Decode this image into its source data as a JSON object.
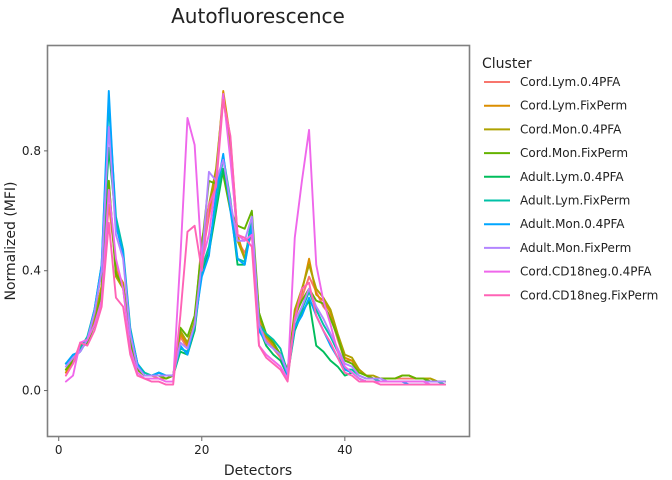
{
  "chart_data": {
    "type": "line",
    "title": "Autofluorescence",
    "xlabel": "Detectors",
    "ylabel": "Normalized (MFI)",
    "xlim": [
      -1.5,
      57.5
    ],
    "ylim": [
      -0.155,
      1.15
    ],
    "xticks": [
      0,
      20,
      40
    ],
    "yticks": [
      0.0,
      0.4,
      0.8
    ],
    "ytick_labels": [
      "0.0",
      "0.4",
      "0.8"
    ],
    "grid": false,
    "legend_title": "Cluster",
    "legend_position": "right",
    "x": [
      1,
      2,
      3,
      4,
      5,
      6,
      7,
      8,
      9,
      10,
      11,
      12,
      13,
      14,
      15,
      16,
      17,
      18,
      19,
      20,
      21,
      22,
      23,
      24,
      25,
      26,
      27,
      28,
      29,
      30,
      31,
      32,
      33,
      34,
      35,
      36,
      37,
      38,
      39,
      40,
      41,
      42,
      43,
      44,
      45,
      46,
      47,
      48,
      49,
      50,
      51,
      52,
      53,
      54
    ],
    "series": [
      {
        "name": "Cord.Lym.0.4PFA",
        "color": "#F8766D",
        "values": [
          0.06,
          0.09,
          0.14,
          0.16,
          0.22,
          0.33,
          0.62,
          0.42,
          0.35,
          0.16,
          0.07,
          0.05,
          0.05,
          0.04,
          0.04,
          0.05,
          0.18,
          0.14,
          0.2,
          0.44,
          0.58,
          0.7,
          0.98,
          0.8,
          0.5,
          0.46,
          0.52,
          0.24,
          0.17,
          0.14,
          0.11,
          0.06,
          0.24,
          0.31,
          0.38,
          0.33,
          0.28,
          0.25,
          0.17,
          0.1,
          0.1,
          0.07,
          0.05,
          0.04,
          0.04,
          0.04,
          0.04,
          0.04,
          0.04,
          0.04,
          0.04,
          0.03,
          0.03,
          0.03
        ]
      },
      {
        "name": "Cord.Lym.FixPerm",
        "color": "#DB8E00",
        "values": [
          0.06,
          0.1,
          0.15,
          0.17,
          0.24,
          0.35,
          0.68,
          0.4,
          0.36,
          0.17,
          0.07,
          0.05,
          0.05,
          0.05,
          0.04,
          0.05,
          0.19,
          0.15,
          0.21,
          0.48,
          0.6,
          0.72,
          1.0,
          0.84,
          0.52,
          0.44,
          0.54,
          0.25,
          0.18,
          0.15,
          0.12,
          0.06,
          0.26,
          0.33,
          0.44,
          0.32,
          0.3,
          0.26,
          0.18,
          0.11,
          0.1,
          0.07,
          0.05,
          0.04,
          0.04,
          0.04,
          0.04,
          0.05,
          0.05,
          0.04,
          0.04,
          0.04,
          0.03,
          0.03
        ]
      },
      {
        "name": "Cord.Mon.0.4PFA",
        "color": "#AEA200",
        "values": [
          0.07,
          0.1,
          0.14,
          0.17,
          0.23,
          0.34,
          0.7,
          0.38,
          0.34,
          0.16,
          0.07,
          0.05,
          0.05,
          0.05,
          0.04,
          0.05,
          0.2,
          0.16,
          0.23,
          0.5,
          0.62,
          0.74,
          0.98,
          0.82,
          0.5,
          0.44,
          0.56,
          0.26,
          0.18,
          0.16,
          0.12,
          0.07,
          0.27,
          0.34,
          0.42,
          0.34,
          0.31,
          0.27,
          0.19,
          0.12,
          0.11,
          0.07,
          0.05,
          0.05,
          0.04,
          0.04,
          0.04,
          0.05,
          0.05,
          0.04,
          0.04,
          0.04,
          0.03,
          0.03
        ]
      },
      {
        "name": "Cord.Mon.FixPerm",
        "color": "#64B200",
        "values": [
          0.07,
          0.1,
          0.14,
          0.16,
          0.22,
          0.33,
          0.7,
          0.39,
          0.35,
          0.16,
          0.07,
          0.05,
          0.05,
          0.05,
          0.04,
          0.05,
          0.21,
          0.18,
          0.25,
          0.48,
          0.7,
          0.69,
          0.72,
          0.6,
          0.55,
          0.54,
          0.6,
          0.26,
          0.19,
          0.16,
          0.12,
          0.07,
          0.25,
          0.3,
          0.34,
          0.3,
          0.29,
          0.24,
          0.18,
          0.1,
          0.09,
          0.06,
          0.05,
          0.04,
          0.04,
          0.04,
          0.04,
          0.05,
          0.05,
          0.04,
          0.04,
          0.03,
          0.03,
          0.03
        ]
      },
      {
        "name": "Adult.Lym.0.4PFA",
        "color": "#00BD5C",
        "values": [
          0.09,
          0.11,
          0.13,
          0.17,
          0.26,
          0.4,
          0.81,
          0.56,
          0.45,
          0.2,
          0.09,
          0.05,
          0.05,
          0.06,
          0.05,
          0.05,
          0.13,
          0.12,
          0.2,
          0.4,
          0.46,
          0.6,
          0.74,
          0.62,
          0.42,
          0.42,
          0.57,
          0.21,
          0.15,
          0.12,
          0.1,
          0.05,
          0.2,
          0.26,
          0.3,
          0.15,
          0.13,
          0.1,
          0.08,
          0.05,
          0.06,
          0.04,
          0.03,
          0.03,
          0.03,
          0.03,
          0.03,
          0.03,
          0.03,
          0.03,
          0.03,
          0.03,
          0.03,
          0.03
        ]
      },
      {
        "name": "Adult.Lym.FixPerm",
        "color": "#00C1A7",
        "values": [
          0.09,
          0.11,
          0.14,
          0.18,
          0.27,
          0.42,
          0.96,
          0.58,
          0.47,
          0.21,
          0.09,
          0.06,
          0.05,
          0.06,
          0.05,
          0.05,
          0.14,
          0.13,
          0.21,
          0.41,
          0.48,
          0.62,
          0.78,
          0.64,
          0.44,
          0.43,
          0.58,
          0.22,
          0.19,
          0.17,
          0.14,
          0.06,
          0.21,
          0.27,
          0.33,
          0.27,
          0.22,
          0.18,
          0.13,
          0.07,
          0.07,
          0.05,
          0.04,
          0.04,
          0.03,
          0.03,
          0.03,
          0.03,
          0.03,
          0.03,
          0.03,
          0.03,
          0.03,
          0.02
        ]
      },
      {
        "name": "Adult.Mon.0.4PFA",
        "color": "#00A6FF",
        "values": [
          0.09,
          0.12,
          0.13,
          0.17,
          0.27,
          0.42,
          1.0,
          0.55,
          0.46,
          0.2,
          0.09,
          0.05,
          0.05,
          0.06,
          0.05,
          0.05,
          0.15,
          0.12,
          0.22,
          0.38,
          0.45,
          0.66,
          0.79,
          0.6,
          0.44,
          0.42,
          0.55,
          0.2,
          0.16,
          0.14,
          0.12,
          0.05,
          0.21,
          0.25,
          0.31,
          0.25,
          0.2,
          0.15,
          0.11,
          0.07,
          0.06,
          0.04,
          0.03,
          0.03,
          0.03,
          0.03,
          0.03,
          0.03,
          0.02,
          0.02,
          0.02,
          0.02,
          0.02,
          0.02
        ]
      },
      {
        "name": "Adult.Mon.FixPerm",
        "color": "#B385FF",
        "values": [
          0.08,
          0.11,
          0.13,
          0.17,
          0.26,
          0.4,
          0.88,
          0.52,
          0.44,
          0.19,
          0.08,
          0.05,
          0.05,
          0.05,
          0.05,
          0.05,
          0.16,
          0.14,
          0.22,
          0.43,
          0.73,
          0.7,
          0.77,
          0.63,
          0.5,
          0.5,
          0.58,
          0.22,
          0.16,
          0.14,
          0.12,
          0.06,
          0.23,
          0.28,
          0.34,
          0.28,
          0.24,
          0.19,
          0.14,
          0.09,
          0.08,
          0.05,
          0.04,
          0.04,
          0.04,
          0.03,
          0.03,
          0.03,
          0.03,
          0.03,
          0.03,
          0.03,
          0.03,
          0.03
        ]
      },
      {
        "name": "Cord.CD18neg.0.4PFA",
        "color": "#EF67EB",
        "values": [
          0.03,
          0.05,
          0.16,
          0.17,
          0.22,
          0.3,
          0.67,
          0.44,
          0.34,
          0.14,
          0.06,
          0.04,
          0.04,
          0.04,
          0.03,
          0.03,
          0.44,
          0.91,
          0.82,
          0.43,
          0.52,
          0.7,
          0.99,
          0.77,
          0.52,
          0.5,
          0.52,
          0.15,
          0.12,
          0.1,
          0.08,
          0.04,
          0.51,
          0.7,
          0.87,
          0.42,
          0.3,
          0.22,
          0.13,
          0.08,
          0.06,
          0.04,
          0.03,
          0.03,
          0.03,
          0.03,
          0.03,
          0.03,
          0.03,
          0.03,
          0.03,
          0.02,
          0.02,
          0.02
        ]
      },
      {
        "name": "Cord.CD18neg.FixPerm",
        "color": "#FF63B6",
        "values": [
          0.05,
          0.09,
          0.16,
          0.15,
          0.2,
          0.28,
          0.56,
          0.31,
          0.28,
          0.12,
          0.05,
          0.04,
          0.03,
          0.03,
          0.02,
          0.02,
          0.25,
          0.53,
          0.55,
          0.4,
          0.62,
          0.68,
          0.97,
          0.85,
          0.52,
          0.51,
          0.48,
          0.15,
          0.11,
          0.09,
          0.07,
          0.03,
          0.24,
          0.34,
          0.36,
          0.25,
          0.2,
          0.16,
          0.11,
          0.06,
          0.05,
          0.03,
          0.03,
          0.03,
          0.02,
          0.02,
          0.02,
          0.02,
          0.02,
          0.02,
          0.02,
          0.02,
          0.02,
          0.02
        ]
      }
    ]
  }
}
